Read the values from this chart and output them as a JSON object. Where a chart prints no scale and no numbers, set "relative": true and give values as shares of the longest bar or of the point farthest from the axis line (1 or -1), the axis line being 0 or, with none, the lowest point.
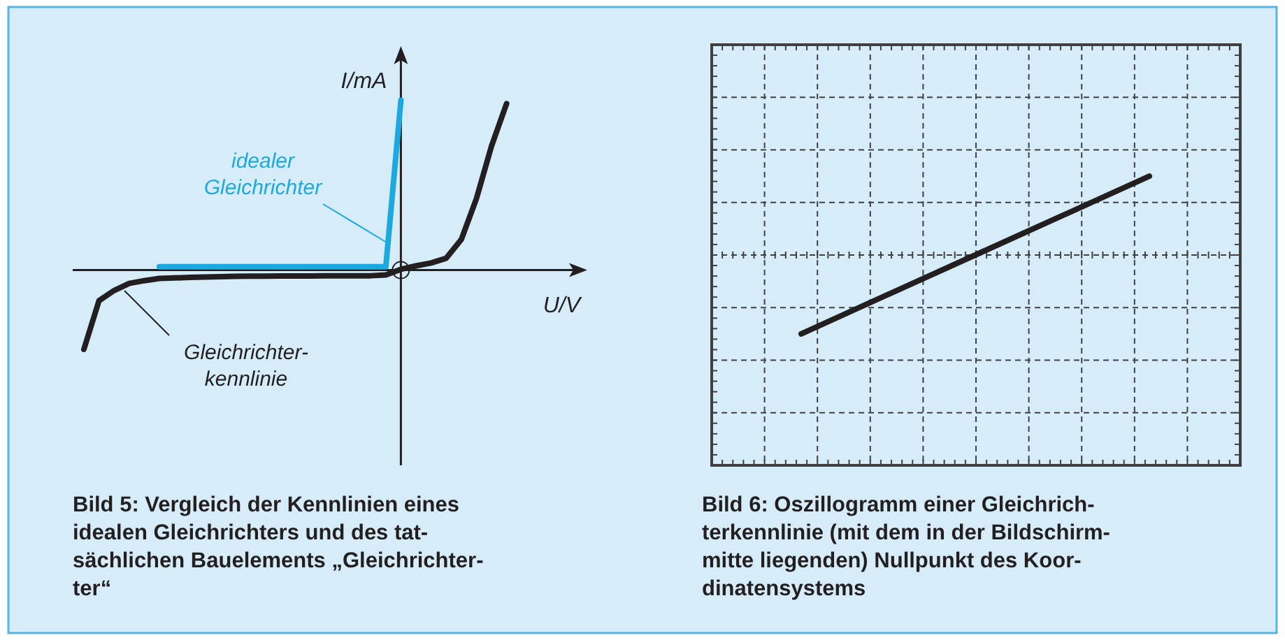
{
  "chart_data": [
    {
      "type": "line",
      "relative": true,
      "xlabel": "U/V",
      "ylabel": "I/mA",
      "title": "Bild 5: Vergleich der Kennlinien eines\nidealen Gleichrichters und des tat-\nsächlichen Bauelements „Gleichrichter-\nter“",
      "categories": [
        null,
        null,
        null,
        null,
        null,
        null,
        null,
        null,
        null,
        null,
        null,
        null,
        null,
        null,
        null,
        null,
        null,
        null,
        null,
        null,
        null,
        null,
        null,
        null,
        null,
        null,
        null,
        null,
        null
      ],
      "series": [
        {
          "name": "idealer\nGleichrichter",
          "color": "#1ea8e0",
          "values": [
            null,
            null,
            null,
            null,
            null,
            0.02,
            0.02,
            0.02,
            0.02,
            0.02,
            0.02,
            0.02,
            0.02,
            0.02,
            0.02,
            0.02,
            0.02,
            0.02,
            0.02,
            0.02,
            0.02,
            1.0,
            null,
            null,
            null,
            null,
            null,
            null,
            null
          ]
        },
        {
          "name": "Gleichrichter-\nkennlinie",
          "color": "#231f20",
          "values": [
            -0.466,
            -0.18,
            -0.12,
            -0.078,
            -0.062,
            -0.049,
            -0.046,
            -0.043,
            -0.041,
            -0.039,
            -0.037,
            -0.036,
            -0.036,
            -0.035,
            -0.035,
            -0.035,
            -0.034,
            -0.034,
            -0.034,
            -0.033,
            -0.028,
            0.005,
            0.025,
            0.042,
            0.07,
            0.18,
            0.42,
            0.73,
            0.98
          ]
        }
      ]
    },
    {
      "type": "line",
      "relative": true,
      "grid": true,
      "title": "Bild 6: Oszillogramm einer Gleichrich-\nterkennlinie (mit dem in der Bildschirm-\nmitte liegenden) Nullpunkt des Koor-\ndinatensystems",
      "categories": [
        null,
        null,
        null
      ],
      "series": [
        {
          "color": "#231f20",
          "values": [
            -1,
            0,
            1
          ]
        }
      ]
    }
  ]
}
